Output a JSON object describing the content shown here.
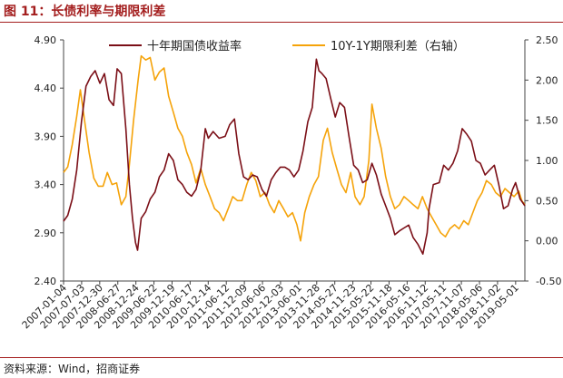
{
  "title": "图 11：长债利率与期限利差",
  "source": "资料来源：Wind，招商证券",
  "chart_data": {
    "type": "line",
    "colors": {
      "yield": "#7b0f17",
      "spread": "#f5a30a",
      "title": "#a31d1d"
    },
    "legend": [
      {
        "series": "yield",
        "label": "十年期国债收益率"
      },
      {
        "series": "spread",
        "label": "10Y-1Y期限利差（右轴）"
      }
    ],
    "legend_position": "top-center",
    "grid": false,
    "y_left": {
      "min": 2.4,
      "max": 4.9,
      "ticks": [
        "2.40",
        "2.90",
        "3.40",
        "3.90",
        "4.40",
        "4.90"
      ]
    },
    "y_right": {
      "min": -0.5,
      "max": 2.5,
      "ticks": [
        "-0.50",
        "0.00",
        "0.50",
        "1.00",
        "1.50",
        "2.00",
        "2.50"
      ]
    },
    "x_range": [
      "2007-01-04",
      "2019-08-01"
    ],
    "x_ticks": [
      "2007-01-04",
      "2007-07-03",
      "2007-12-30",
      "2008-06-27",
      "2008-12-24",
      "2009-06-22",
      "2009-12-19",
      "2010-06-17",
      "2010-12-14",
      "2011-06-12",
      "2011-12-09",
      "2012-06-06",
      "2012-12-03",
      "2013-06-01",
      "2013-11-28",
      "2014-05-27",
      "2014-11-23",
      "2015-05-22",
      "2015-11-18",
      "2016-05-16",
      "2016-11-12",
      "2017-05-11",
      "2017-11-07",
      "2018-05-06",
      "2018-11-02",
      "2019-05-01"
    ],
    "series": [
      {
        "key": "yield",
        "axis": "left",
        "points": [
          [
            "2007-01-04",
            3.02
          ],
          [
            "2007-02-15",
            3.08
          ],
          [
            "2007-04-01",
            3.25
          ],
          [
            "2007-05-15",
            3.55
          ],
          [
            "2007-07-01",
            4.05
          ],
          [
            "2007-08-15",
            4.42
          ],
          [
            "2007-10-01",
            4.52
          ],
          [
            "2007-11-15",
            4.58
          ],
          [
            "2008-01-01",
            4.45
          ],
          [
            "2008-02-15",
            4.55
          ],
          [
            "2008-04-01",
            4.28
          ],
          [
            "2008-05-15",
            4.22
          ],
          [
            "2008-06-20",
            4.6
          ],
          [
            "2008-08-01",
            4.55
          ],
          [
            "2008-09-15",
            3.98
          ],
          [
            "2008-10-20",
            3.4
          ],
          [
            "2008-11-20",
            3.05
          ],
          [
            "2008-12-20",
            2.8
          ],
          [
            "2009-01-10",
            2.72
          ],
          [
            "2009-02-15",
            3.05
          ],
          [
            "2009-04-01",
            3.12
          ],
          [
            "2009-05-15",
            3.25
          ],
          [
            "2009-07-01",
            3.32
          ],
          [
            "2009-08-15",
            3.48
          ],
          [
            "2009-10-01",
            3.55
          ],
          [
            "2009-11-15",
            3.72
          ],
          [
            "2010-01-01",
            3.65
          ],
          [
            "2010-02-15",
            3.45
          ],
          [
            "2010-04-01",
            3.4
          ],
          [
            "2010-05-15",
            3.32
          ],
          [
            "2010-07-01",
            3.28
          ],
          [
            "2010-08-15",
            3.35
          ],
          [
            "2010-10-01",
            3.55
          ],
          [
            "2010-11-15",
            3.98
          ],
          [
            "2010-12-15",
            3.88
          ],
          [
            "2011-02-01",
            3.95
          ],
          [
            "2011-04-01",
            3.88
          ],
          [
            "2011-06-01",
            3.9
          ],
          [
            "2011-07-15",
            4.02
          ],
          [
            "2011-09-01",
            4.08
          ],
          [
            "2011-10-15",
            3.72
          ],
          [
            "2011-12-01",
            3.48
          ],
          [
            "2012-01-15",
            3.45
          ],
          [
            "2012-03-01",
            3.5
          ],
          [
            "2012-04-15",
            3.48
          ],
          [
            "2012-06-01",
            3.35
          ],
          [
            "2012-07-15",
            3.28
          ],
          [
            "2012-09-01",
            3.45
          ],
          [
            "2012-10-15",
            3.52
          ],
          [
            "2012-12-01",
            3.58
          ],
          [
            "2013-01-15",
            3.58
          ],
          [
            "2013-03-01",
            3.55
          ],
          [
            "2013-04-15",
            3.48
          ],
          [
            "2013-06-01",
            3.55
          ],
          [
            "2013-07-15",
            3.75
          ],
          [
            "2013-09-01",
            4.05
          ],
          [
            "2013-10-15",
            4.2
          ],
          [
            "2013-11-25",
            4.7
          ],
          [
            "2013-12-20",
            4.58
          ],
          [
            "2014-01-20",
            4.55
          ],
          [
            "2014-03-01",
            4.5
          ],
          [
            "2014-04-15",
            4.3
          ],
          [
            "2014-06-01",
            4.1
          ],
          [
            "2014-07-15",
            4.25
          ],
          [
            "2014-09-01",
            4.2
          ],
          [
            "2014-10-15",
            3.9
          ],
          [
            "2014-12-01",
            3.6
          ],
          [
            "2015-01-15",
            3.55
          ],
          [
            "2015-03-01",
            3.42
          ],
          [
            "2015-04-15",
            3.45
          ],
          [
            "2015-06-01",
            3.62
          ],
          [
            "2015-07-15",
            3.5
          ],
          [
            "2015-09-01",
            3.3
          ],
          [
            "2015-10-15",
            3.18
          ],
          [
            "2015-12-01",
            3.05
          ],
          [
            "2016-01-15",
            2.88
          ],
          [
            "2016-03-01",
            2.92
          ],
          [
            "2016-04-15",
            2.95
          ],
          [
            "2016-06-01",
            2.98
          ],
          [
            "2016-07-15",
            2.85
          ],
          [
            "2016-09-01",
            2.78
          ],
          [
            "2016-10-20",
            2.68
          ],
          [
            "2016-12-01",
            2.9
          ],
          [
            "2016-12-20",
            3.15
          ],
          [
            "2017-02-01",
            3.4
          ],
          [
            "2017-04-01",
            3.42
          ],
          [
            "2017-05-15",
            3.6
          ],
          [
            "2017-07-01",
            3.55
          ],
          [
            "2017-08-15",
            3.62
          ],
          [
            "2017-10-01",
            3.75
          ],
          [
            "2017-11-15",
            3.98
          ],
          [
            "2018-01-01",
            3.92
          ],
          [
            "2018-02-15",
            3.85
          ],
          [
            "2018-04-01",
            3.65
          ],
          [
            "2018-05-15",
            3.62
          ],
          [
            "2018-07-01",
            3.5
          ],
          [
            "2018-08-15",
            3.55
          ],
          [
            "2018-10-01",
            3.6
          ],
          [
            "2018-11-15",
            3.4
          ],
          [
            "2019-01-01",
            3.15
          ],
          [
            "2019-02-15",
            3.18
          ],
          [
            "2019-04-01",
            3.35
          ],
          [
            "2019-05-01",
            3.42
          ],
          [
            "2019-06-15",
            3.25
          ],
          [
            "2019-08-01",
            3.18
          ]
        ]
      },
      {
        "key": "spread",
        "axis": "right",
        "points": [
          [
            "2007-01-04",
            0.85
          ],
          [
            "2007-02-15",
            0.92
          ],
          [
            "2007-04-01",
            1.2
          ],
          [
            "2007-05-15",
            1.55
          ],
          [
            "2007-06-20",
            1.88
          ],
          [
            "2007-08-01",
            1.5
          ],
          [
            "2007-09-15",
            1.1
          ],
          [
            "2007-11-01",
            0.78
          ],
          [
            "2007-12-15",
            0.68
          ],
          [
            "2008-02-01",
            0.68
          ],
          [
            "2008-03-15",
            0.85
          ],
          [
            "2008-05-01",
            0.7
          ],
          [
            "2008-06-15",
            0.72
          ],
          [
            "2008-08-01",
            0.45
          ],
          [
            "2008-09-15",
            0.55
          ],
          [
            "2008-10-20",
            0.95
          ],
          [
            "2008-12-01",
            1.5
          ],
          [
            "2009-01-15",
            2.0
          ],
          [
            "2009-02-15",
            2.3
          ],
          [
            "2009-04-01",
            2.25
          ],
          [
            "2009-05-15",
            2.28
          ],
          [
            "2009-07-01",
            2.0
          ],
          [
            "2009-08-15",
            2.1
          ],
          [
            "2009-10-01",
            2.15
          ],
          [
            "2009-11-15",
            1.8
          ],
          [
            "2010-01-01",
            1.6
          ],
          [
            "2010-02-15",
            1.4
          ],
          [
            "2010-04-01",
            1.3
          ],
          [
            "2010-05-15",
            1.1
          ],
          [
            "2010-07-01",
            0.95
          ],
          [
            "2010-08-15",
            0.72
          ],
          [
            "2010-10-01",
            0.9
          ],
          [
            "2010-11-15",
            0.7
          ],
          [
            "2011-01-01",
            0.55
          ],
          [
            "2011-02-15",
            0.4
          ],
          [
            "2011-04-01",
            0.35
          ],
          [
            "2011-05-15",
            0.25
          ],
          [
            "2011-07-01",
            0.4
          ],
          [
            "2011-08-15",
            0.55
          ],
          [
            "2011-10-01",
            0.5
          ],
          [
            "2011-11-15",
            0.5
          ],
          [
            "2012-01-01",
            0.7
          ],
          [
            "2012-02-15",
            0.85
          ],
          [
            "2012-04-01",
            0.75
          ],
          [
            "2012-05-15",
            0.55
          ],
          [
            "2012-07-01",
            0.6
          ],
          [
            "2012-08-15",
            0.45
          ],
          [
            "2012-10-01",
            0.35
          ],
          [
            "2012-11-15",
            0.5
          ],
          [
            "2013-01-01",
            0.4
          ],
          [
            "2013-02-15",
            0.3
          ],
          [
            "2013-04-01",
            0.35
          ],
          [
            "2013-05-15",
            0.2
          ],
          [
            "2013-06-20",
            0.0
          ],
          [
            "2013-08-01",
            0.35
          ],
          [
            "2013-09-15",
            0.55
          ],
          [
            "2013-11-01",
            0.7
          ],
          [
            "2013-12-15",
            0.8
          ],
          [
            "2014-02-01",
            1.25
          ],
          [
            "2014-03-15",
            1.4
          ],
          [
            "2014-05-01",
            1.1
          ],
          [
            "2014-06-15",
            0.9
          ],
          [
            "2014-08-01",
            0.7
          ],
          [
            "2014-09-15",
            0.6
          ],
          [
            "2014-11-01",
            0.85
          ],
          [
            "2014-12-15",
            0.55
          ],
          [
            "2015-02-01",
            0.45
          ],
          [
            "2015-03-15",
            0.55
          ],
          [
            "2015-05-01",
            1.0
          ],
          [
            "2015-06-01",
            1.7
          ],
          [
            "2015-07-15",
            1.4
          ],
          [
            "2015-09-01",
            1.15
          ],
          [
            "2015-10-15",
            0.8
          ],
          [
            "2015-12-01",
            0.55
          ],
          [
            "2016-01-15",
            0.4
          ],
          [
            "2016-03-01",
            0.45
          ],
          [
            "2016-04-15",
            0.55
          ],
          [
            "2016-06-01",
            0.5
          ],
          [
            "2016-07-15",
            0.45
          ],
          [
            "2016-09-01",
            0.4
          ],
          [
            "2016-10-15",
            0.55
          ],
          [
            "2016-12-01",
            0.4
          ],
          [
            "2017-01-15",
            0.3
          ],
          [
            "2017-03-01",
            0.2
          ],
          [
            "2017-04-15",
            0.1
          ],
          [
            "2017-06-01",
            0.05
          ],
          [
            "2017-07-15",
            0.15
          ],
          [
            "2017-09-01",
            0.2
          ],
          [
            "2017-10-15",
            0.15
          ],
          [
            "2017-12-01",
            0.25
          ],
          [
            "2018-01-15",
            0.2
          ],
          [
            "2018-03-01",
            0.35
          ],
          [
            "2018-04-15",
            0.5
          ],
          [
            "2018-06-01",
            0.6
          ],
          [
            "2018-07-15",
            0.75
          ],
          [
            "2018-09-01",
            0.7
          ],
          [
            "2018-10-15",
            0.6
          ],
          [
            "2018-12-01",
            0.55
          ],
          [
            "2019-01-15",
            0.65
          ],
          [
            "2019-03-01",
            0.6
          ],
          [
            "2019-04-15",
            0.55
          ],
          [
            "2019-06-01",
            0.62
          ],
          [
            "2019-07-01",
            0.5
          ],
          [
            "2019-08-01",
            0.45
          ]
        ]
      }
    ]
  }
}
